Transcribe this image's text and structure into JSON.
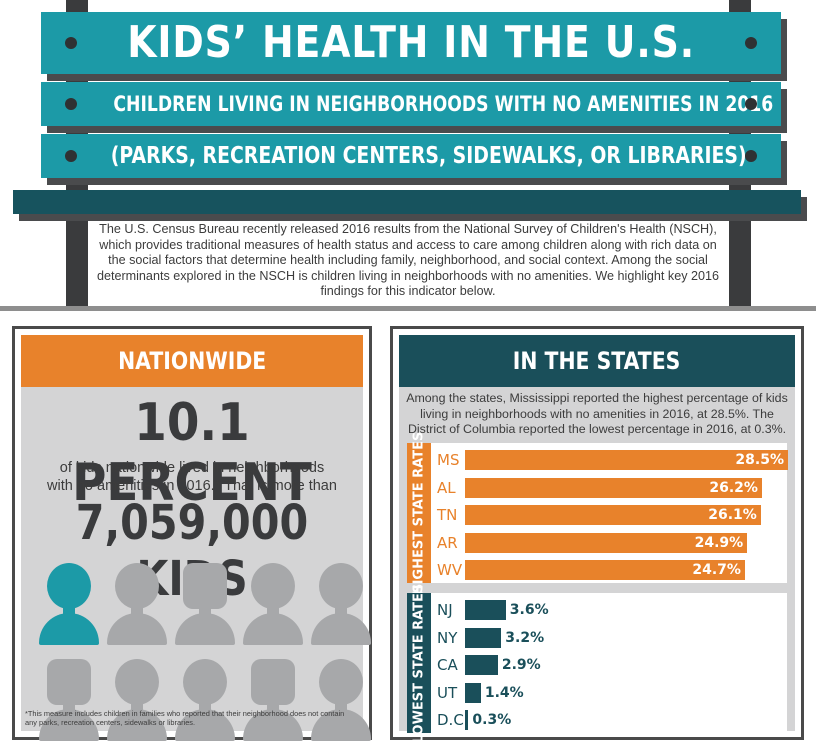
{
  "header": {
    "title": "KIDS’ HEALTH IN THE U.S.",
    "subtitle1": "CHILDREN LIVING IN NEIGHBORHOODS WITH NO AMENITIES IN 2016",
    "subtitle2": "(PARKS, RECREATION CENTERS, SIDEWALKS, OR LIBRARIES)",
    "intro": "The U.S. Census Bureau recently released 2016 results from the National Survey of Children's Health (NSCH), which provides traditional measures of health status and access to care among children along with rich data on the social factors that determine health including family, neighborhood, and social context. Among the social determinants explored in the NSCH is children living in neighborhoods with no amenities.  We highlight key 2016 findings for this indicator below."
  },
  "nationwide": {
    "heading": "NATIONWIDE",
    "percent": "10.1 PERCENT",
    "desc_line1": "of kids nationwide lived in neighborhoods",
    "desc_line2": "with no amenities in 2016.*  That is more than",
    "kids": "7,059,000 KIDS",
    "kid_icons": {
      "total": 10,
      "highlighted": 1
    },
    "footnote": "*This measure includes children in families who reported that their neighborhood does not contain any parks, recreation centers, sidewalks or libraries."
  },
  "states": {
    "heading": "IN THE STATES",
    "desc": "Among the states, Mississippi reported the highest percentage of kids living in neighborhoods with no amenities in 2016, at 28.5%. The District of Columbia reported the lowest percentage in 2016, at 0.3%."
  },
  "colors": {
    "teal": "#1c9aa7",
    "navy": "#1a4f5a",
    "orange": "#e8822b",
    "grey": "#a7a8aa"
  },
  "chart_data": {
    "type": "bar",
    "orientation": "horizontal",
    "xlim": [
      0,
      30
    ],
    "groups": [
      {
        "name": "HIGHEST STATE RATES",
        "categories": [
          "MS",
          "AL",
          "TN",
          "AR",
          "WV"
        ],
        "values": [
          28.5,
          26.2,
          26.1,
          24.9,
          24.7
        ],
        "labels": [
          "28.5%",
          "26.2%",
          "26.1%",
          "24.9%",
          "24.7%"
        ]
      },
      {
        "name": "LOWEST STATE RATES",
        "categories": [
          "NJ",
          "NY",
          "CA",
          "UT",
          "D.C."
        ],
        "values": [
          3.6,
          3.2,
          2.9,
          1.4,
          0.3
        ],
        "labels": [
          "3.6%",
          "3.2%",
          "2.9%",
          "1.4%",
          "0.3%"
        ]
      }
    ]
  }
}
